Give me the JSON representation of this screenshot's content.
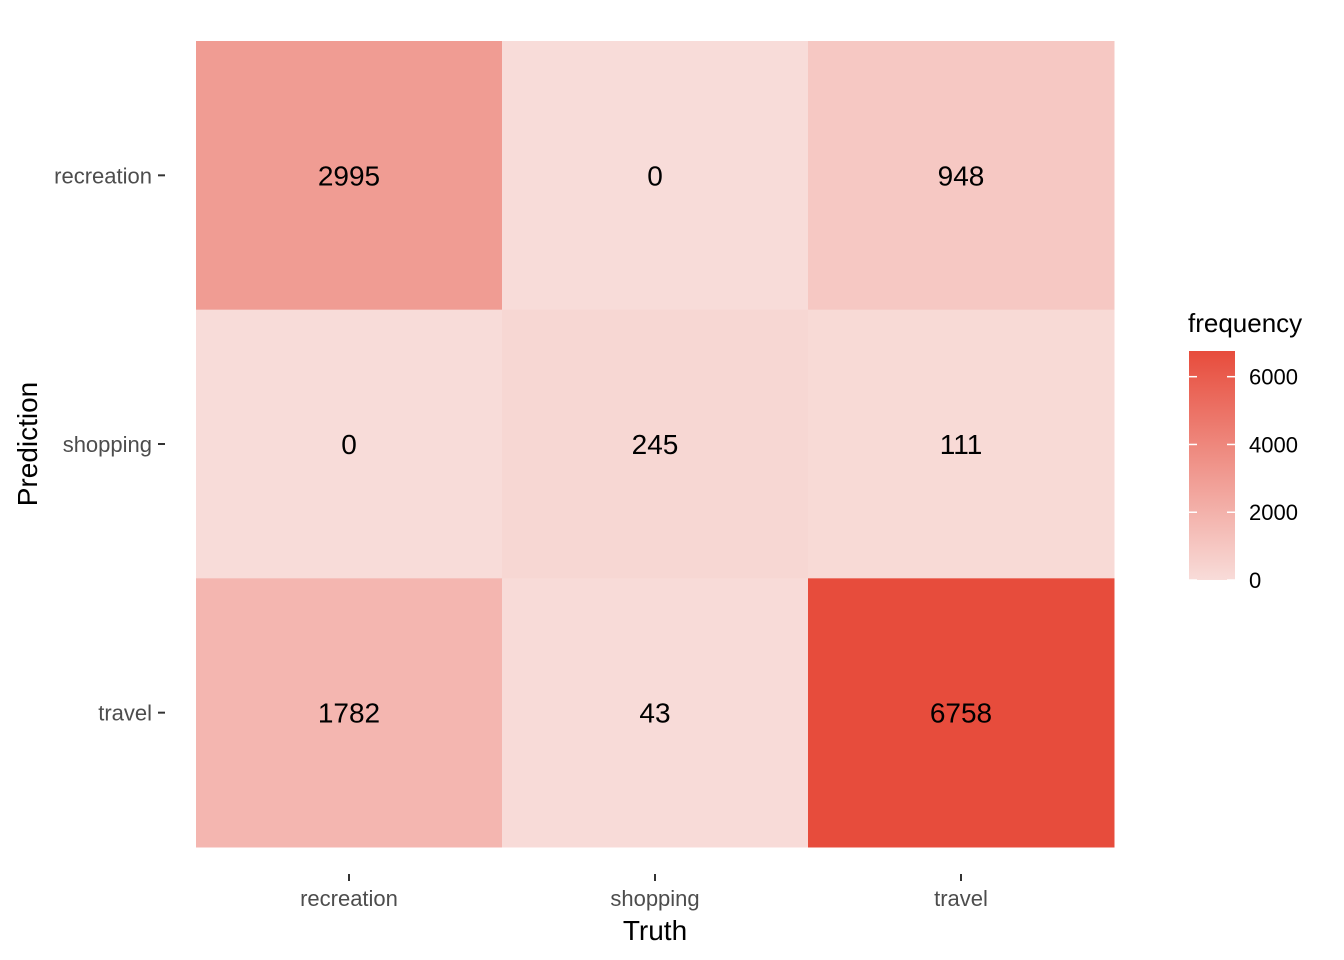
{
  "chart_data": {
    "type": "heatmap",
    "x_categories": [
      "recreation",
      "shopping",
      "travel"
    ],
    "y_categories": [
      "recreation",
      "shopping",
      "travel"
    ],
    "xlabel": "Truth",
    "ylabel": "Prediction",
    "cells": [
      {
        "x": "recreation",
        "y": "recreation",
        "value": 2995
      },
      {
        "x": "shopping",
        "y": "recreation",
        "value": 0
      },
      {
        "x": "travel",
        "y": "recreation",
        "value": 948
      },
      {
        "x": "recreation",
        "y": "shopping",
        "value": 0
      },
      {
        "x": "shopping",
        "y": "shopping",
        "value": 245
      },
      {
        "x": "travel",
        "y": "shopping",
        "value": 111
      },
      {
        "x": "recreation",
        "y": "travel",
        "value": 1782
      },
      {
        "x": "shopping",
        "y": "travel",
        "value": 43
      },
      {
        "x": "travel",
        "y": "travel",
        "value": 6758
      }
    ],
    "legend": {
      "title": "frequency",
      "breaks": [
        0,
        2000,
        4000,
        6000
      ],
      "range": [
        0,
        6758
      ],
      "low_color": "#f8dcd9",
      "high_color": "#e74c3c",
      "placement": "right"
    },
    "grid": false
  }
}
